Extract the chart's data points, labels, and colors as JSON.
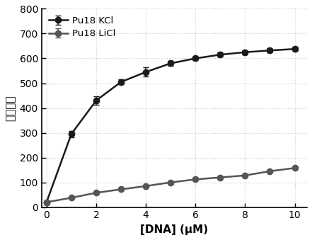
{
  "kcl_x": [
    0,
    1,
    2,
    3,
    4,
    5,
    6,
    7,
    8,
    9,
    10
  ],
  "kcl_y": [
    20,
    295,
    430,
    505,
    545,
    580,
    600,
    615,
    625,
    632,
    638
  ],
  "kcl_err": [
    3,
    12,
    18,
    10,
    18,
    10,
    8,
    8,
    8,
    8,
    8
  ],
  "licl_x": [
    0,
    1,
    2,
    3,
    4,
    5,
    6,
    7,
    8,
    9,
    10
  ],
  "licl_y": [
    20,
    38,
    58,
    72,
    85,
    100,
    112,
    120,
    128,
    145,
    158
  ],
  "licl_err": [
    2,
    2,
    2,
    2,
    2,
    2,
    2,
    2,
    2,
    2,
    2
  ],
  "kcl_color": "#1a1a1a",
  "licl_color": "#555555",
  "kcl_label": "Pu18 KCl",
  "licl_label": "Pu18 LiCl",
  "xlabel": "[DNA] (μM)",
  "ylabel": "荧光强度",
  "xlim": [
    -0.2,
    10.5
  ],
  "ylim": [
    0,
    800
  ],
  "yticks": [
    0,
    100,
    200,
    300,
    400,
    500,
    600,
    700,
    800
  ],
  "xticks": [
    0,
    2,
    4,
    6,
    8,
    10
  ],
  "background_color": "#ffffff",
  "grid_color": "#cccccc"
}
